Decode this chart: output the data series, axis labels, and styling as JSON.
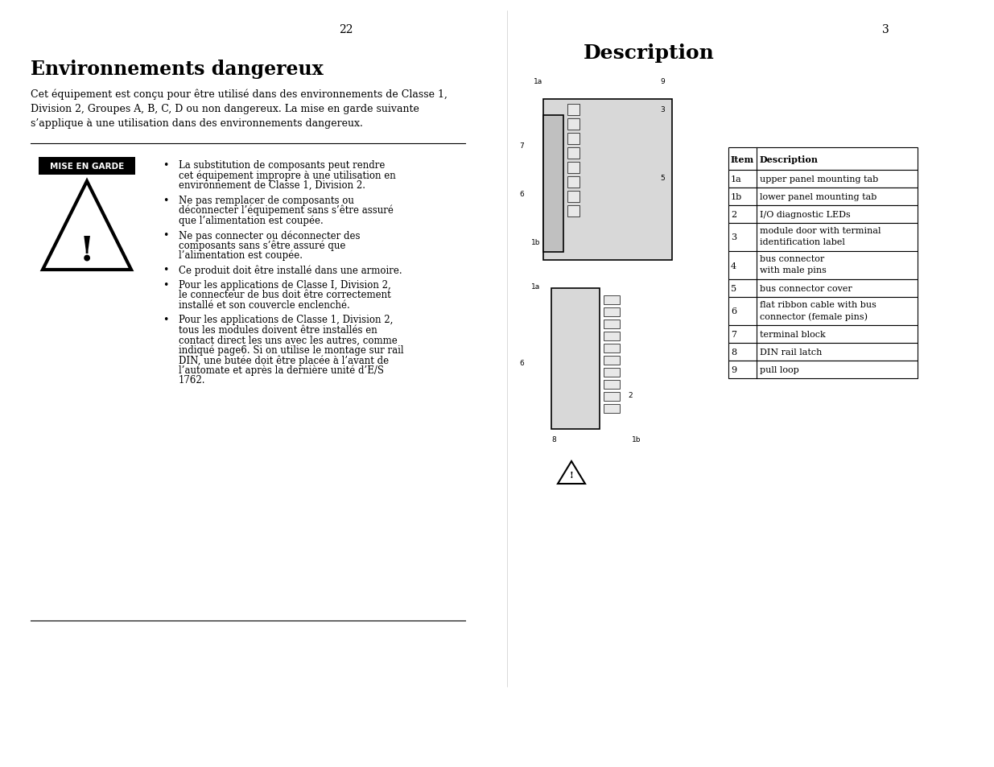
{
  "page_number_left": "22",
  "page_number_right": "3",
  "left_title": "Environnements dangereux",
  "left_intro": "Cet équipement est conçu pour être utilisé dans des environnements de Classe 1,\nDivision 2, Groupes A, B, C, D ou non dangereux. La mise en garde suivante\ns’applique à une utilisation dans des environnements dangereux.",
  "warning_label": "MISE EN GARDE",
  "bullet_points": [
    "La substitution de composants peut rendre\ncet équipement impropre à une utilisation en\nenvironnement de Classe 1, Division 2.",
    "Ne pas remplacer de composants ou\ndéconnecter l’équipement sans s’être assuré\nque l’alimentation est coupée.",
    "Ne pas connecter ou déconnecter des\ncomposants sans s’être assuré que\nl’alimentation est coupée.",
    "Ce produit doit être installé dans une armoire.",
    "Pour les applications de Classe I, Division 2,\nle connecteur de bus doit être correctement\ninstallé et son couvercle enclenché.",
    "Pour les applications de Classe 1, Division 2,\ntous les modules doivent être installés en\ncontact direct les uns avec les autres, comme\nindiqué page6. Si on utilise le montage sur rail\nDIN, une butée doit être placée à l’avant de\nl’automate et après la dernière unité d’E/S\n1762."
  ],
  "right_title": "Description",
  "table_headers": [
    "Item",
    "Description"
  ],
  "table_rows": [
    [
      "1a",
      "upper panel mounting tab"
    ],
    [
      "1b",
      "lower panel mounting tab"
    ],
    [
      "2",
      "I/O diagnostic LEDs"
    ],
    [
      "3",
      "module door with terminal\nidentification label"
    ],
    [
      "4",
      "bus connector\nwith male pins"
    ],
    [
      "5",
      "bus connector cover"
    ],
    [
      "6",
      "flat ribbon cable with bus\nconnector (female pins)"
    ],
    [
      "7",
      "terminal block"
    ],
    [
      "8",
      "DIN rail latch"
    ],
    [
      "9",
      "pull loop"
    ]
  ],
  "background_color": "#ffffff",
  "text_color": "#000000",
  "separator_color": "#000000"
}
